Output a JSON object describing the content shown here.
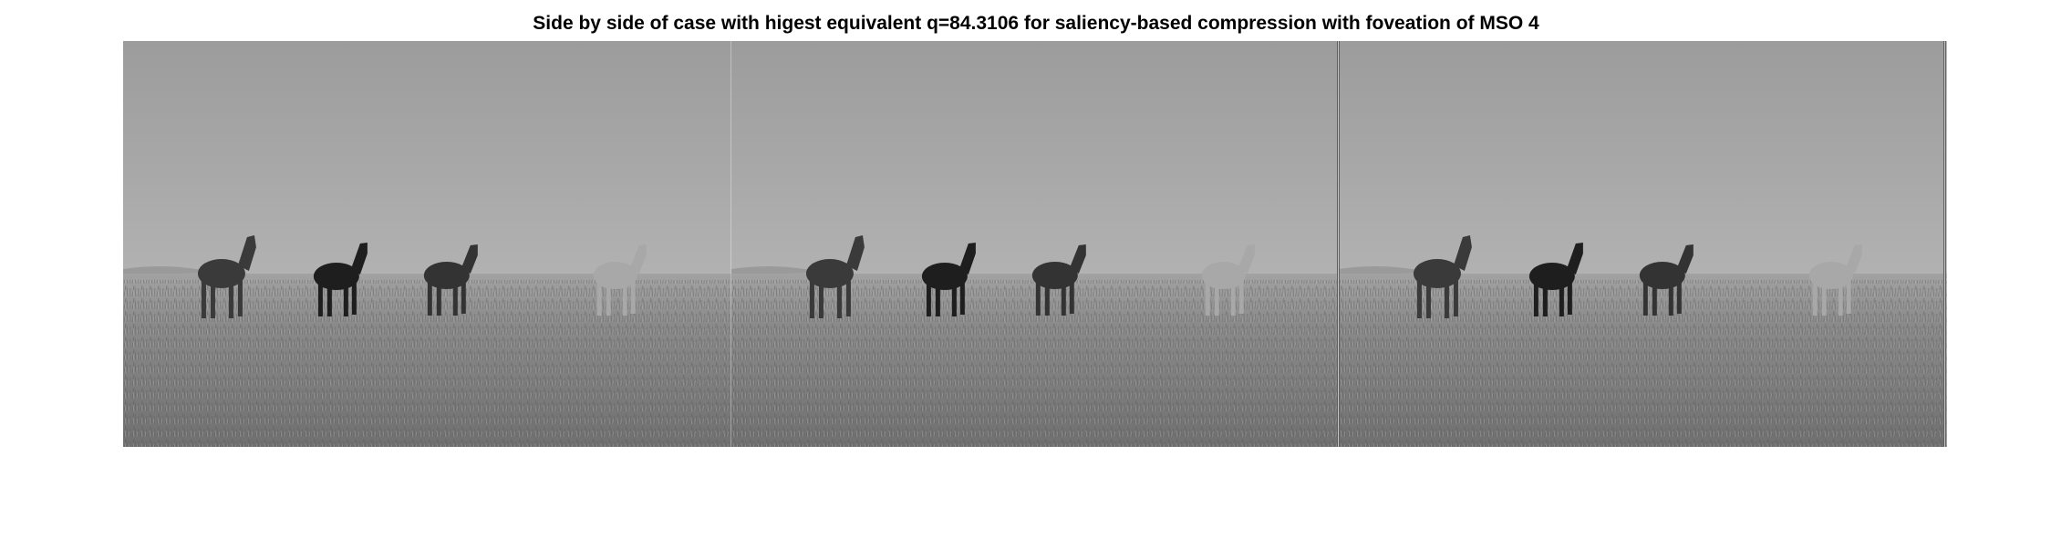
{
  "figure": {
    "title": "Side by side of case with higest equivalent q=84.3106 for saliency-based compression with foveation of MSO 4"
  },
  "panels": [
    {
      "name": "original-image"
    },
    {
      "name": "compressed-image"
    },
    {
      "name": "foveated-image"
    }
  ],
  "scene": {
    "subject": "four horses standing on grassland under overcast sky",
    "horse_count": 4,
    "horse_icons": [
      "horse-dark-brown",
      "horse-black",
      "horse-dark-brown",
      "horse-light-gray"
    ],
    "colors": {
      "sky_top": "#9e9e9e",
      "sky_horizon": "#b4b4b4",
      "grass_far": "#9a9a9a",
      "grass_near": "#6e6e6e",
      "horse_dark": "#3a3a3a",
      "horse_black": "#1e1e1e",
      "horse_light": "#a8a8a8"
    }
  }
}
